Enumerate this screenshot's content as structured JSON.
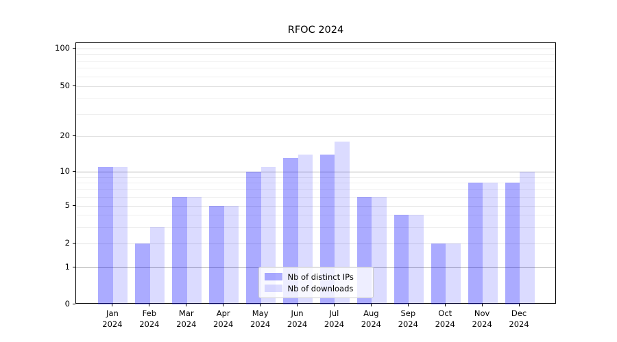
{
  "chart_data": {
    "type": "bar",
    "title": "RFOC 2024",
    "categories": [
      "Jan",
      "Feb",
      "Mar",
      "Apr",
      "May",
      "Jun",
      "Jul",
      "Aug",
      "Sep",
      "Oct",
      "Nov",
      "Dec"
    ],
    "x_year_label": "2024",
    "series": [
      {
        "name": "Nb of distinct IPs",
        "base_color": "#0000ff",
        "alpha": 0.33,
        "color": "#abaaff",
        "values": [
          11,
          2,
          6,
          5,
          10,
          13,
          14,
          6,
          4,
          2,
          8,
          8
        ]
      },
      {
        "name": "Nb of downloads",
        "base_color": "#0000ff",
        "alpha": 0.14,
        "color": "#dcdcff",
        "values": [
          11,
          3,
          6,
          5,
          11,
          14,
          18,
          6,
          4,
          2,
          8,
          10
        ]
      }
    ],
    "yticks": [
      0,
      1,
      2,
      5,
      10,
      20,
      50,
      100
    ],
    "yscale": "log-like",
    "ylim": [
      0,
      100
    ],
    "xlabel": "",
    "ylabel": "",
    "grid": true,
    "legend_position": "lower center"
  }
}
